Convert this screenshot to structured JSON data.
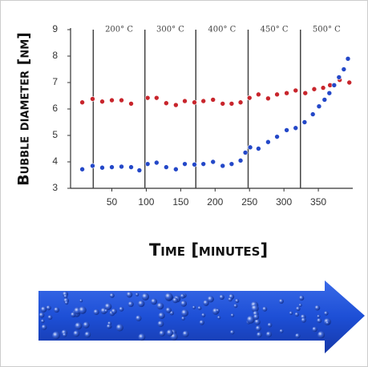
{
  "chart_data": {
    "type": "scatter",
    "x_label": "Time [minutes]",
    "y_label": "Bubble diameter [nm]",
    "xlim": [
      -10,
      400
    ],
    "ylim": [
      3,
      9
    ],
    "xticks": [
      50,
      100,
      150,
      200,
      250,
      300,
      350
    ],
    "yticks": [
      3,
      4,
      5,
      6,
      7,
      8,
      9
    ],
    "vlines": [
      23,
      98,
      172,
      248,
      324
    ],
    "annotations": [
      "200° C",
      "300° C",
      "400° C",
      "450° C",
      "500° C"
    ],
    "series": [
      {
        "color": "#c8252c",
        "x": [
          7,
          22,
          36,
          50,
          64,
          78,
          102,
          115,
          129,
          143,
          156,
          170,
          183,
          197,
          211,
          224,
          237,
          250,
          263,
          277,
          290,
          304,
          317,
          331,
          344,
          357,
          367,
          381,
          395
        ],
        "values": [
          6.25,
          6.38,
          6.28,
          6.33,
          6.33,
          6.2,
          6.42,
          6.42,
          6.22,
          6.15,
          6.3,
          6.25,
          6.3,
          6.35,
          6.2,
          6.2,
          6.25,
          6.42,
          6.55,
          6.4,
          6.55,
          6.6,
          6.7,
          6.6,
          6.75,
          6.8,
          6.9,
          7.1,
          7.0
        ]
      },
      {
        "color": "#2448c8",
        "x": [
          7,
          22,
          36,
          50,
          64,
          78,
          90,
          102,
          115,
          129,
          143,
          156,
          170,
          183,
          197,
          211,
          224,
          237,
          244,
          251,
          263,
          277,
          290,
          304,
          317,
          330,
          342,
          351,
          359,
          366,
          373,
          380,
          387,
          393
        ],
        "values": [
          3.72,
          3.85,
          3.78,
          3.8,
          3.82,
          3.8,
          3.68,
          3.92,
          3.97,
          3.8,
          3.72,
          3.92,
          3.9,
          3.92,
          4.0,
          3.85,
          3.92,
          4.05,
          4.35,
          4.55,
          4.5,
          4.75,
          4.95,
          5.2,
          5.28,
          5.5,
          5.8,
          6.1,
          6.35,
          6.6,
          6.9,
          7.2,
          7.5,
          7.9
        ]
      }
    ]
  }
}
